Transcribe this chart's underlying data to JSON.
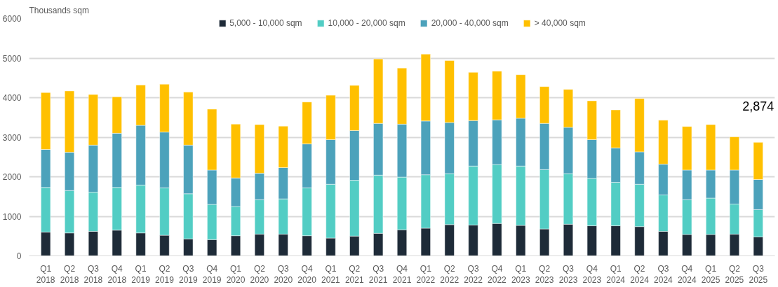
{
  "chart_data": {
    "type": "bar",
    "stacked": true,
    "ylabel": "Thousands sqm",
    "categories": [
      "Q1\n2018",
      "Q2\n2018",
      "Q3\n2018",
      "Q4\n2018",
      "Q1\n2019",
      "Q2\n2019",
      "Q3\n2019",
      "Q4\n2019",
      "Q1\n2020",
      "Q2\n2020",
      "Q3\n2020",
      "Q4\n2020",
      "Q1\n2021",
      "Q2\n2021",
      "Q3\n2021",
      "Q4\n2021",
      "Q1\n2022",
      "Q2\n2022",
      "Q3\n2022",
      "Q4\n2022",
      "Q1\n2023",
      "Q2\n2023",
      "Q3\n2023",
      "Q4\n2023",
      "Q1\n2024",
      "Q2\n2024",
      "Q3\n2024",
      "Q4\n2024",
      "Q1\n2025",
      "Q2\n2025",
      "Q3\n2025"
    ],
    "series": [
      {
        "name": "5,000 - 10,000 sqm",
        "color": "#1e2b38",
        "values": [
          600,
          580,
          620,
          650,
          580,
          520,
          430,
          410,
          510,
          550,
          550,
          510,
          450,
          500,
          570,
          660,
          700,
          790,
          780,
          820,
          770,
          680,
          800,
          760,
          760,
          740,
          620,
          540,
          540,
          550,
          480
        ]
      },
      {
        "name": "10,000 - 20,000 sqm",
        "color": "#52cdc4",
        "values": [
          1130,
          1070,
          990,
          1080,
          1210,
          1200,
          1140,
          890,
          740,
          870,
          890,
          1210,
          1360,
          1410,
          1470,
          1330,
          1350,
          1290,
          1490,
          1490,
          1500,
          1500,
          1280,
          1200,
          1100,
          1070,
          920,
          880,
          920,
          760,
          690
        ]
      },
      {
        "name": "20,000 - 40,000 sqm",
        "color": "#4ca2bb",
        "values": [
          960,
          970,
          1190,
          1370,
          1510,
          1410,
          1230,
          870,
          720,
          670,
          790,
          1110,
          1130,
          1260,
          1310,
          1340,
          1360,
          1290,
          1150,
          1130,
          1210,
          1170,
          1170,
          980,
          870,
          820,
          780,
          750,
          710,
          860,
          760
        ]
      },
      {
        "name": "> 40,000 sqm",
        "color": "#ffc000",
        "values": [
          1440,
          1550,
          1280,
          920,
          1020,
          1210,
          1340,
          1540,
          1360,
          1230,
          1050,
          1060,
          1120,
          1140,
          1630,
          1420,
          1690,
          1570,
          1220,
          1230,
          1100,
          930,
          960,
          980,
          960,
          1350,
          1110,
          1100,
          1150,
          840,
          940
        ]
      }
    ],
    "ylim": [
      0,
      6000
    ],
    "yticks": [
      0,
      1000,
      2000,
      3000,
      4000,
      5000,
      6000
    ],
    "grid": "y",
    "legend": "top",
    "annotations": [
      {
        "text": "2,874",
        "x": "Q3\n2025",
        "y": 2874
      }
    ]
  }
}
